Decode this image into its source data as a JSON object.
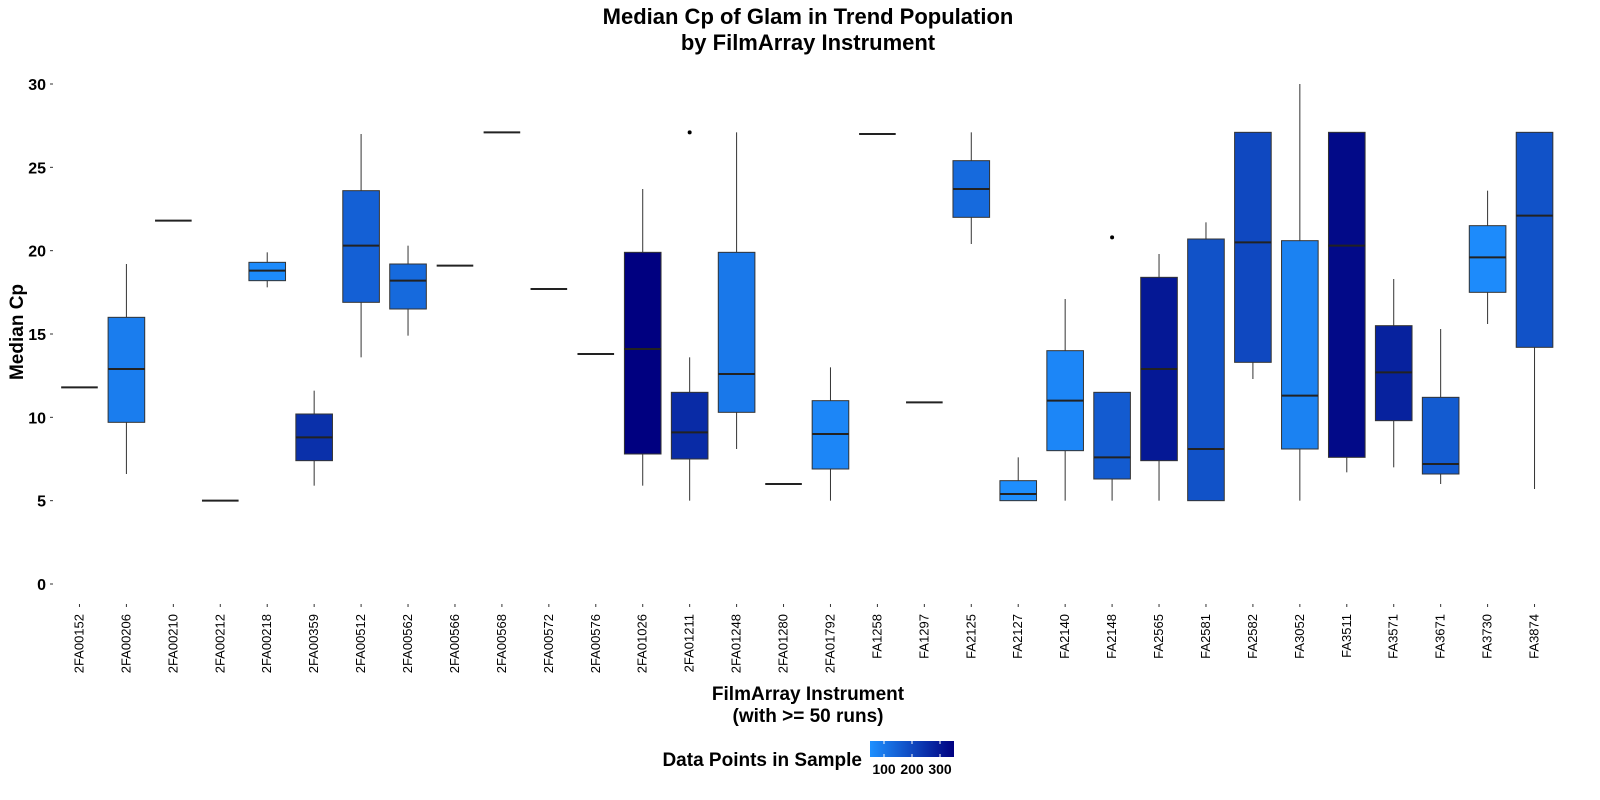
{
  "chart_data": {
    "type": "boxplot",
    "title_lines": [
      "Median Cp of Glam in Trend Population",
      "by FilmArray Instrument"
    ],
    "xlabel_lines": [
      "FilmArray Instrument",
      "(with >= 50 runs)"
    ],
    "ylabel": "Median Cp",
    "ylim": [
      0,
      30
    ],
    "yticks": [
      0,
      5,
      10,
      15,
      20,
      25,
      30
    ],
    "grid": false,
    "legend": {
      "title": "Data Points in Sample",
      "position": "bottom",
      "tick_labels": [
        "100",
        "200",
        "300"
      ],
      "tick_values": [
        100,
        200,
        300
      ],
      "range": [
        50,
        350
      ],
      "colors": [
        "#1E90FF",
        "#000080"
      ]
    },
    "boxes": [
      {
        "label": "2FA00152",
        "min": 11.8,
        "q1": 11.8,
        "median": 11.8,
        "q3": 11.8,
        "max": 11.8,
        "n": 60,
        "outliers": []
      },
      {
        "label": "2FA00206",
        "min": 6.6,
        "q1": 9.7,
        "median": 12.9,
        "q3": 16.0,
        "max": 19.2,
        "n": 90,
        "outliers": []
      },
      {
        "label": "2FA00210",
        "min": 21.8,
        "q1": 21.8,
        "median": 21.8,
        "q3": 21.8,
        "max": 21.8,
        "n": 60,
        "outliers": []
      },
      {
        "label": "2FA00212",
        "min": 5.0,
        "q1": 5.0,
        "median": 5.0,
        "q3": 5.0,
        "max": 5.0,
        "n": 60,
        "outliers": []
      },
      {
        "label": "2FA00218",
        "min": 17.8,
        "q1": 18.2,
        "median": 18.8,
        "q3": 19.3,
        "max": 19.9,
        "n": 60,
        "outliers": []
      },
      {
        "label": "2FA00359",
        "min": 5.9,
        "q1": 7.4,
        "median": 8.8,
        "q3": 10.2,
        "max": 11.6,
        "n": 250,
        "outliers": []
      },
      {
        "label": "2FA00512",
        "min": 13.6,
        "q1": 16.9,
        "median": 20.3,
        "q3": 23.6,
        "max": 27.0,
        "n": 150,
        "outliers": []
      },
      {
        "label": "2FA00562",
        "min": 14.9,
        "q1": 16.5,
        "median": 18.2,
        "q3": 19.2,
        "max": 20.3,
        "n": 130,
        "outliers": []
      },
      {
        "label": "2FA00566",
        "min": 19.1,
        "q1": 19.1,
        "median": 19.1,
        "q3": 19.1,
        "max": 19.1,
        "n": 60,
        "outliers": []
      },
      {
        "label": "2FA00568",
        "min": 27.1,
        "q1": 27.1,
        "median": 27.1,
        "q3": 27.1,
        "max": 27.1,
        "n": 60,
        "outliers": []
      },
      {
        "label": "2FA00572",
        "min": 17.7,
        "q1": 17.7,
        "median": 17.7,
        "q3": 17.7,
        "max": 17.7,
        "n": 60,
        "outliers": []
      },
      {
        "label": "2FA00576",
        "min": 13.8,
        "q1": 13.8,
        "median": 13.8,
        "q3": 13.8,
        "max": 13.8,
        "n": 60,
        "outliers": []
      },
      {
        "label": "2FA01026",
        "min": 5.9,
        "q1": 7.8,
        "median": 14.1,
        "q3": 19.9,
        "max": 23.7,
        "n": 350,
        "outliers": []
      },
      {
        "label": "2FA01211",
        "min": 5.0,
        "q1": 7.5,
        "median": 9.1,
        "q3": 11.5,
        "max": 13.6,
        "n": 260,
        "outliers": [
          27.1
        ]
      },
      {
        "label": "2FA01248",
        "min": 8.1,
        "q1": 10.3,
        "median": 12.6,
        "q3": 19.9,
        "max": 27.1,
        "n": 100,
        "outliers": []
      },
      {
        "label": "2FA01280",
        "min": 6.0,
        "q1": 6.0,
        "median": 6.0,
        "q3": 6.0,
        "max": 6.0,
        "n": 60,
        "outliers": []
      },
      {
        "label": "2FA01792",
        "min": 5.0,
        "q1": 6.9,
        "median": 9.0,
        "q3": 11.0,
        "max": 13.0,
        "n": 70,
        "outliers": []
      },
      {
        "label": "FA1258",
        "min": 27.0,
        "q1": 27.0,
        "median": 27.0,
        "q3": 27.0,
        "max": 27.0,
        "n": 60,
        "outliers": []
      },
      {
        "label": "FA1297",
        "min": 10.9,
        "q1": 10.9,
        "median": 10.9,
        "q3": 10.9,
        "max": 10.9,
        "n": 60,
        "outliers": []
      },
      {
        "label": "FA2125",
        "min": 20.4,
        "q1": 22.0,
        "median": 23.7,
        "q3": 25.4,
        "max": 27.1,
        "n": 130,
        "outliers": []
      },
      {
        "label": "FA2127",
        "min": 5.0,
        "q1": 5.0,
        "median": 5.4,
        "q3": 6.2,
        "max": 7.6,
        "n": 55,
        "outliers": []
      },
      {
        "label": "FA2140",
        "min": 5.0,
        "q1": 8.0,
        "median": 11.0,
        "q3": 14.0,
        "max": 17.1,
        "n": 70,
        "outliers": []
      },
      {
        "label": "FA2148",
        "min": 5.0,
        "q1": 6.3,
        "median": 7.6,
        "q3": 11.5,
        "max": 11.5,
        "n": 160,
        "outliers": [
          20.8
        ]
      },
      {
        "label": "FA2565",
        "min": 5.0,
        "q1": 7.4,
        "median": 12.9,
        "q3": 18.4,
        "max": 19.8,
        "n": 300,
        "outliers": []
      },
      {
        "label": "FA2581",
        "min": 5.0,
        "q1": 5.0,
        "median": 8.1,
        "q3": 20.7,
        "max": 21.7,
        "n": 180,
        "outliers": []
      },
      {
        "label": "FA2582",
        "min": 12.3,
        "q1": 13.3,
        "median": 20.5,
        "q3": 27.1,
        "max": 27.1,
        "n": 200,
        "outliers": []
      },
      {
        "label": "FA3052",
        "min": 5.0,
        "q1": 8.1,
        "median": 11.3,
        "q3": 20.6,
        "max": 30.0,
        "n": 80,
        "outliers": []
      },
      {
        "label": "FA3511",
        "min": 6.7,
        "q1": 7.6,
        "median": 20.3,
        "q3": 27.1,
        "max": 27.1,
        "n": 330,
        "outliers": []
      },
      {
        "label": "FA3571",
        "min": 7.0,
        "q1": 9.8,
        "median": 12.7,
        "q3": 15.5,
        "max": 18.3,
        "n": 280,
        "outliers": []
      },
      {
        "label": "FA3671",
        "min": 6.0,
        "q1": 6.6,
        "median": 7.2,
        "q3": 11.2,
        "max": 15.3,
        "n": 160,
        "outliers": []
      },
      {
        "label": "FA3730",
        "min": 15.6,
        "q1": 17.5,
        "median": 19.6,
        "q3": 21.5,
        "max": 23.6,
        "n": 60,
        "outliers": []
      },
      {
        "label": "FA3874",
        "min": 5.7,
        "q1": 14.2,
        "median": 22.1,
        "q3": 27.1,
        "max": 27.1,
        "n": 180,
        "outliers": []
      }
    ]
  }
}
